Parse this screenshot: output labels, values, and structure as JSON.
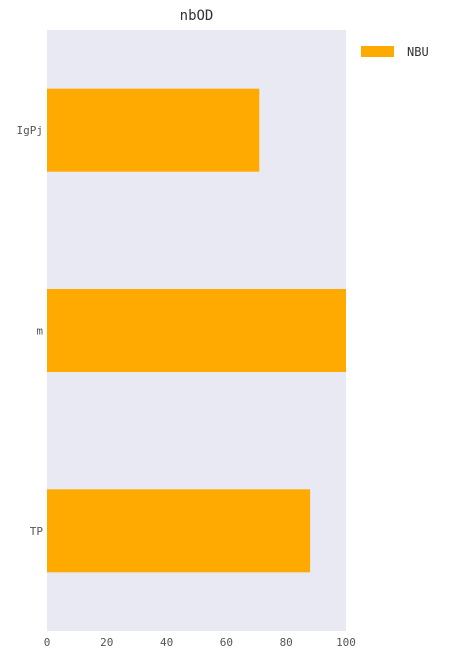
{
  "chart_data": {
    "type": "bar",
    "orientation": "horizontal",
    "title": "nbOD",
    "xlabel": "",
    "ylabel": "",
    "categories": [
      "IgPj",
      "m",
      "TP"
    ],
    "series": [
      {
        "name": "NBU",
        "values": [
          71,
          100,
          88
        ],
        "color": "#FFAA00"
      }
    ],
    "xlim": [
      0,
      100
    ],
    "xticks": [
      0,
      20,
      40,
      60,
      80,
      100
    ],
    "grid": false,
    "legend_position": "top-right",
    "plot_background": "#E8E9F2"
  }
}
